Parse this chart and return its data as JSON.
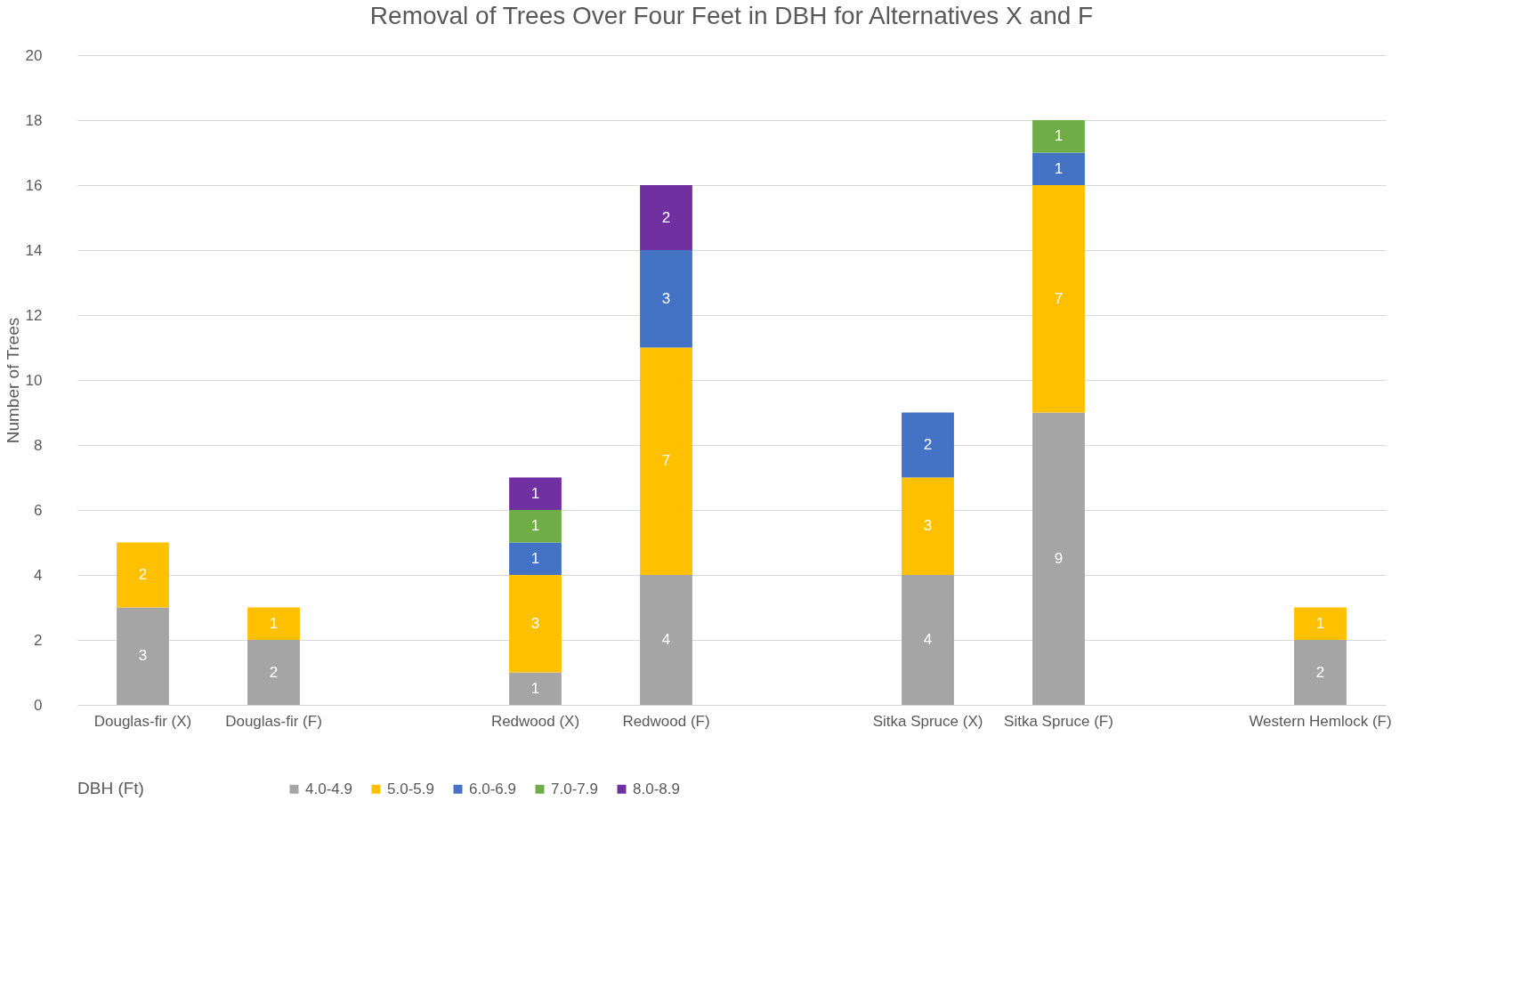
{
  "chart_data": {
    "type": "bar",
    "title": "Removal of Trees Over Four Feet in DBH for Alternatives X and F",
    "ylabel": "Number of Trees",
    "legend_title": "DBH (Ft)",
    "categories": [
      "Douglas-fir (X)",
      "Douglas-fir (F)",
      null,
      "Redwood (X)",
      "Redwood (F)",
      null,
      "Sitka Spruce (X)",
      "Sitka Spruce (F)",
      null,
      "Western Hemlock (F)"
    ],
    "series": [
      {
        "name": "4.0-4.9",
        "color": "#a5a5a5",
        "values": [
          3,
          2,
          null,
          1,
          4,
          null,
          4,
          9,
          null,
          2
        ]
      },
      {
        "name": "5.0-5.9",
        "color": "#ffc000",
        "values": [
          2,
          1,
          null,
          3,
          7,
          null,
          3,
          7,
          null,
          1
        ]
      },
      {
        "name": "6.0-6.9",
        "color": "#4472c4",
        "values": [
          null,
          null,
          null,
          1,
          3,
          null,
          2,
          1,
          null,
          null
        ]
      },
      {
        "name": "7.0-7.9",
        "color": "#70ad47",
        "values": [
          null,
          null,
          null,
          1,
          null,
          null,
          null,
          1,
          null,
          null
        ]
      },
      {
        "name": "8.0-8.9",
        "color": "#7030a0",
        "values": [
          null,
          null,
          null,
          1,
          2,
          null,
          null,
          null,
          null,
          null
        ]
      }
    ],
    "stacked": true,
    "ylim": [
      0,
      20
    ],
    "yticks": [
      0,
      2,
      4,
      6,
      8,
      10,
      12,
      14,
      16,
      18,
      20
    ],
    "grid": "y",
    "legend": "bottom",
    "data_labels": true
  }
}
